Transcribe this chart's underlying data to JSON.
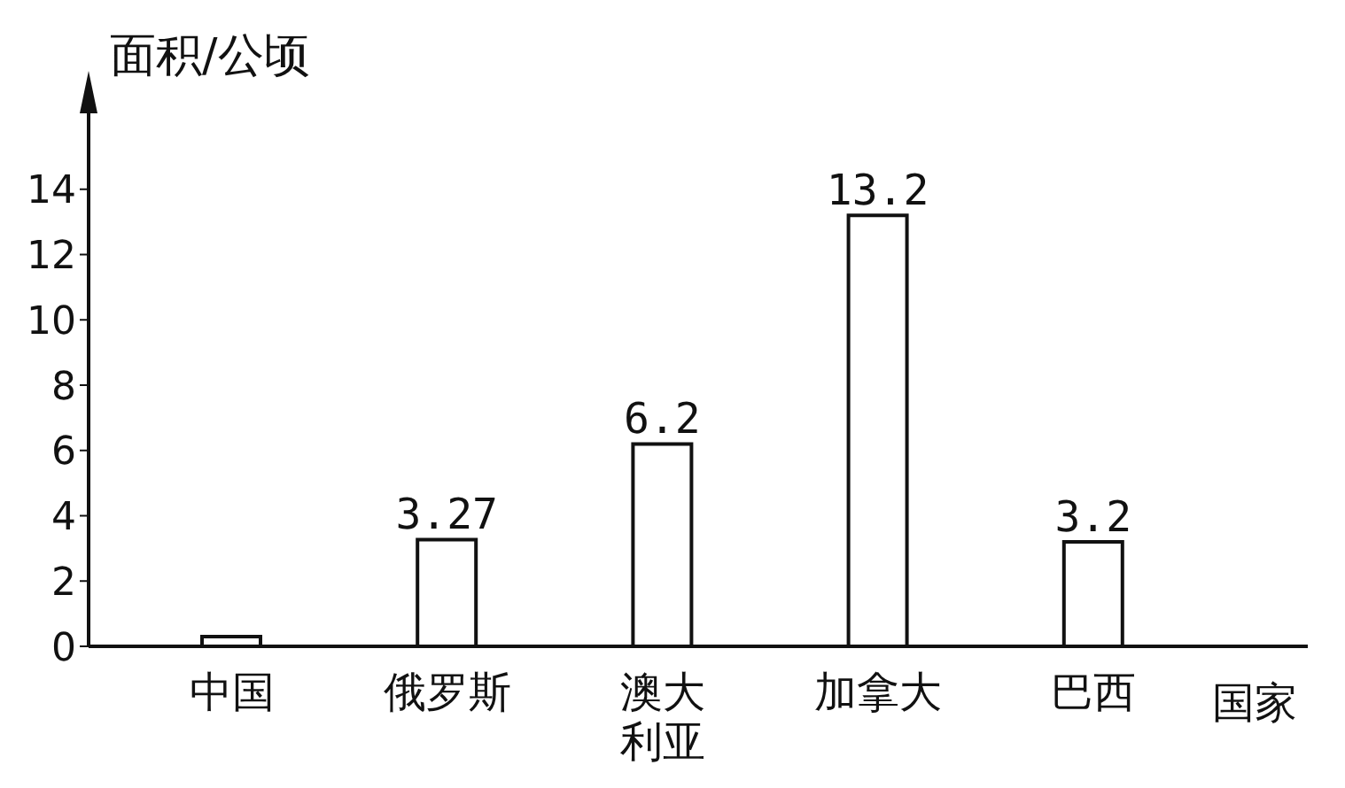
{
  "chart_data": {
    "type": "bar",
    "ylabel": "面积/公顷",
    "xlabel": "国家",
    "categories": [
      "中国",
      "俄罗斯",
      "澳大利亚",
      "加拿大",
      "巴西"
    ],
    "values": [
      0.3,
      3.27,
      6.2,
      13.2,
      3.2
    ],
    "value_labels": [
      null,
      "3.27",
      "6.2",
      "13.2",
      "3.2"
    ],
    "color": "#ffffff",
    "ylim": [
      0,
      16
    ],
    "yticks": [
      0,
      2,
      4,
      6,
      8,
      10,
      12,
      14
    ],
    "grid": false,
    "legend": false
  }
}
